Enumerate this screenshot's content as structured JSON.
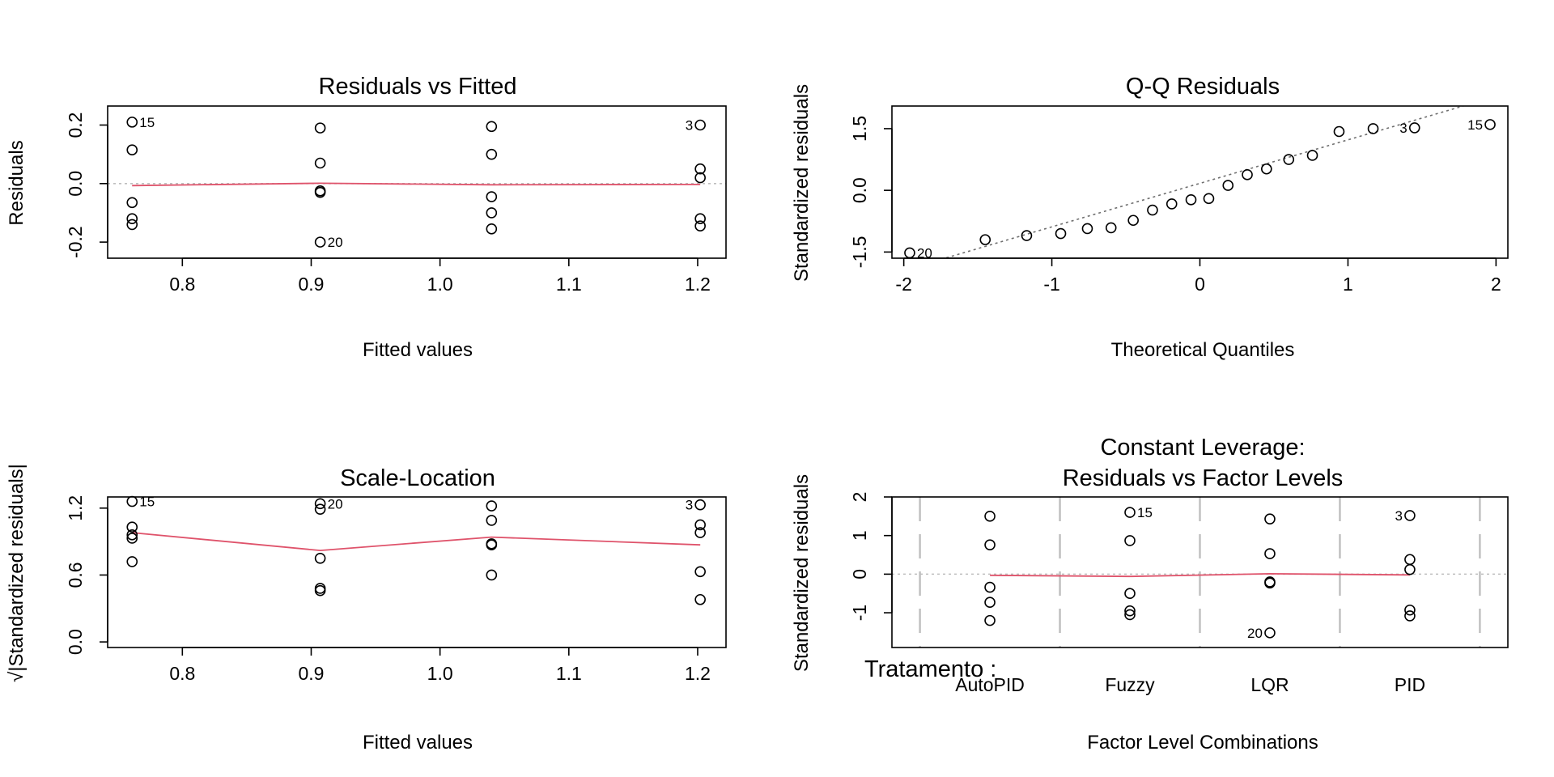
{
  "chart_data": [
    {
      "id": "rvf",
      "type": "scatter",
      "title": "Residuals vs Fitted",
      "xlabel": "Fitted values",
      "ylabel": "Residuals",
      "xlim": [
        0.742,
        1.222
      ],
      "ylim": [
        -0.255,
        0.265
      ],
      "xticks": [
        0.8,
        0.9,
        1.0,
        1.1,
        1.2
      ],
      "xtick_labels": [
        "0.8",
        "0.9",
        "1.0",
        "1.1",
        "1.2"
      ],
      "yticks": [
        -0.2,
        0.0,
        0.2
      ],
      "ytick_labels": [
        "-0.2",
        "0.0",
        "0.2"
      ],
      "reference_line": 0,
      "points": [
        {
          "x": 0.761,
          "y": 0.21
        },
        {
          "x": 0.761,
          "y": 0.115
        },
        {
          "x": 0.761,
          "y": -0.065
        },
        {
          "x": 0.761,
          "y": -0.12
        },
        {
          "x": 0.761,
          "y": -0.14
        },
        {
          "x": 0.907,
          "y": 0.19
        },
        {
          "x": 0.907,
          "y": 0.07
        },
        {
          "x": 0.907,
          "y": -0.025
        },
        {
          "x": 0.907,
          "y": -0.03
        },
        {
          "x": 0.907,
          "y": -0.2
        },
        {
          "x": 1.04,
          "y": 0.195
        },
        {
          "x": 1.04,
          "y": 0.1
        },
        {
          "x": 1.04,
          "y": -0.045
        },
        {
          "x": 1.04,
          "y": -0.1
        },
        {
          "x": 1.04,
          "y": -0.155
        },
        {
          "x": 1.202,
          "y": 0.2
        },
        {
          "x": 1.202,
          "y": 0.05
        },
        {
          "x": 1.202,
          "y": 0.02
        },
        {
          "x": 1.202,
          "y": -0.12
        },
        {
          "x": 1.202,
          "y": -0.145
        }
      ],
      "smooth_line": {
        "x": [
          0.761,
          0.907,
          1.04,
          1.202
        ],
        "y": [
          -0.007,
          0.001,
          -0.004,
          -0.003
        ]
      },
      "point_labels": [
        {
          "text": "15",
          "x": 0.761,
          "y": 0.21,
          "side": "right"
        },
        {
          "text": "20",
          "x": 0.907,
          "y": -0.2,
          "side": "right"
        },
        {
          "text": "3",
          "x": 1.202,
          "y": 0.2,
          "side": "left"
        }
      ]
    },
    {
      "id": "qq",
      "type": "scatter",
      "title": "Q-Q Residuals",
      "xlabel": "Theoretical Quantiles",
      "ylabel": "Standardized residuals",
      "xlim": [
        -2.08,
        2.08
      ],
      "ylim": [
        -1.65,
        2.05
      ],
      "xticks": [
        -2,
        -1,
        0,
        1,
        2
      ],
      "xtick_labels": [
        "-2",
        "-1",
        "0",
        "1",
        "2"
      ],
      "yticks": [
        -1.5,
        0.0,
        1.5
      ],
      "ytick_labels": [
        "-1.5",
        "0.0",
        "1.5"
      ],
      "qq_line": {
        "x": [
          -2.08,
          2.08
        ],
        "y": [
          -2.03,
          2.37
        ]
      },
      "points": [
        {
          "x": -1.96,
          "y": -1.52
        },
        {
          "x": -1.45,
          "y": -1.2
        },
        {
          "x": -1.17,
          "y": -1.1
        },
        {
          "x": -0.94,
          "y": -1.05
        },
        {
          "x": -0.76,
          "y": -0.93
        },
        {
          "x": -0.6,
          "y": -0.91
        },
        {
          "x": -0.45,
          "y": -0.73
        },
        {
          "x": -0.32,
          "y": -0.48
        },
        {
          "x": -0.19,
          "y": -0.33
        },
        {
          "x": -0.06,
          "y": -0.23
        },
        {
          "x": 0.06,
          "y": -0.2
        },
        {
          "x": 0.19,
          "y": 0.12
        },
        {
          "x": 0.32,
          "y": 0.38
        },
        {
          "x": 0.45,
          "y": 0.52
        },
        {
          "x": 0.6,
          "y": 0.75
        },
        {
          "x": 0.76,
          "y": 0.85
        },
        {
          "x": 0.94,
          "y": 1.43
        },
        {
          "x": 1.17,
          "y": 1.5
        },
        {
          "x": 1.45,
          "y": 1.52
        },
        {
          "x": 1.96,
          "y": 1.6
        }
      ],
      "point_labels": [
        {
          "text": "20",
          "x": -1.96,
          "y": -1.52,
          "side": "right"
        },
        {
          "text": "3",
          "x": 1.45,
          "y": 1.52,
          "side": "left"
        },
        {
          "text": "15",
          "x": 1.96,
          "y": 1.6,
          "side": "left"
        }
      ]
    },
    {
      "id": "sl",
      "type": "scatter",
      "title": "Scale-Location",
      "xlabel": "Fitted values",
      "ylabel": "√|Standardized residuals|",
      "xlim": [
        0.742,
        1.222
      ],
      "ylim": [
        -0.05,
        1.3
      ],
      "xticks": [
        0.8,
        0.9,
        1.0,
        1.1,
        1.2
      ],
      "xtick_labels": [
        "0.8",
        "0.9",
        "1.0",
        "1.1",
        "1.2"
      ],
      "yticks": [
        0.0,
        0.6,
        1.2
      ],
      "ytick_labels": [
        "0.0",
        "0.6",
        "1.2"
      ],
      "points": [
        {
          "x": 0.761,
          "y": 1.26
        },
        {
          "x": 0.761,
          "y": 1.03
        },
        {
          "x": 0.761,
          "y": 0.96
        },
        {
          "x": 0.761,
          "y": 0.93
        },
        {
          "x": 0.761,
          "y": 0.72
        },
        {
          "x": 0.907,
          "y": 1.24
        },
        {
          "x": 0.907,
          "y": 1.19
        },
        {
          "x": 0.907,
          "y": 0.75
        },
        {
          "x": 0.907,
          "y": 0.48
        },
        {
          "x": 0.907,
          "y": 0.46
        },
        {
          "x": 1.04,
          "y": 1.22
        },
        {
          "x": 1.04,
          "y": 1.09
        },
        {
          "x": 1.04,
          "y": 0.88
        },
        {
          "x": 1.04,
          "y": 0.87
        },
        {
          "x": 1.04,
          "y": 0.6
        },
        {
          "x": 1.202,
          "y": 1.23
        },
        {
          "x": 1.202,
          "y": 1.05
        },
        {
          "x": 1.202,
          "y": 0.98
        },
        {
          "x": 1.202,
          "y": 0.63
        },
        {
          "x": 1.202,
          "y": 0.38
        }
      ],
      "smooth_line": {
        "x": [
          0.761,
          0.907,
          1.04,
          1.202
        ],
        "y": [
          0.98,
          0.82,
          0.94,
          0.87
        ]
      },
      "point_labels": [
        {
          "text": "15",
          "x": 0.761,
          "y": 1.26,
          "side": "right"
        },
        {
          "text": "20",
          "x": 0.907,
          "y": 1.24,
          "side": "right"
        },
        {
          "text": "3",
          "x": 1.202,
          "y": 1.23,
          "side": "left"
        }
      ]
    },
    {
      "id": "lev",
      "type": "scatter",
      "title": "Constant Leverage:",
      "subtitle": "Residuals vs Factor Levels",
      "xlabel": "Factor Level Combinations",
      "ylabel": "Standardized residuals",
      "factor_label": "Tratamento :",
      "categories": [
        "AutoPID",
        "Fuzzy",
        "LQR",
        "PID"
      ],
      "category_positions": [
        1,
        2,
        3,
        4
      ],
      "xlim": [
        0.3,
        4.7
      ],
      "ylim": [
        -1.9,
        2.0
      ],
      "yticks": [
        -1,
        0,
        1,
        2
      ],
      "ytick_labels": [
        "-1",
        "0",
        "1",
        "2"
      ],
      "dividers": [
        0.5,
        1.5,
        2.5,
        3.5,
        4.5
      ],
      "reference_line": 0,
      "points": [
        {
          "x": 1,
          "y": 1.5
        },
        {
          "x": 1,
          "y": 0.76
        },
        {
          "x": 1,
          "y": -0.34
        },
        {
          "x": 1,
          "y": -0.73
        },
        {
          "x": 1,
          "y": -1.2
        },
        {
          "x": 2,
          "y": 1.6
        },
        {
          "x": 2,
          "y": 0.87
        },
        {
          "x": 2,
          "y": -0.5
        },
        {
          "x": 2,
          "y": -0.95
        },
        {
          "x": 2,
          "y": -1.05
        },
        {
          "x": 3,
          "y": 1.43
        },
        {
          "x": 3,
          "y": 0.53
        },
        {
          "x": 3,
          "y": -0.2
        },
        {
          "x": 3,
          "y": -0.23
        },
        {
          "x": 3,
          "y": -1.52
        },
        {
          "x": 4,
          "y": 1.52
        },
        {
          "x": 4,
          "y": 0.38
        },
        {
          "x": 4,
          "y": 0.12
        },
        {
          "x": 4,
          "y": -0.93
        },
        {
          "x": 4,
          "y": -1.08
        }
      ],
      "smooth_line": {
        "x": [
          1,
          2,
          3,
          4
        ],
        "y": [
          -0.03,
          -0.06,
          0.01,
          -0.02
        ]
      },
      "point_labels": [
        {
          "text": "15",
          "x": 2,
          "y": 1.6,
          "side": "right"
        },
        {
          "text": "3",
          "x": 4,
          "y": 1.52,
          "side": "left"
        },
        {
          "text": "20",
          "x": 3,
          "y": -1.52,
          "side": "left"
        }
      ]
    }
  ],
  "colors": {
    "smooth": "#DF536B",
    "reference": "#BEBEBE",
    "points": "#000000",
    "qq_line": "#6E6E6E"
  }
}
